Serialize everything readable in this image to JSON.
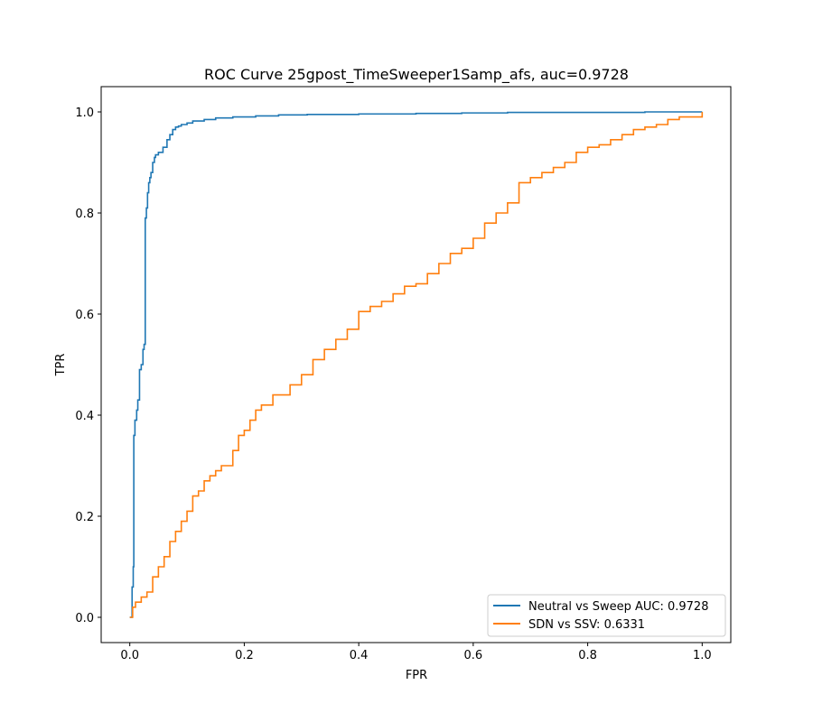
{
  "chart_data": {
    "type": "line",
    "title": "ROC Curve 25gpost_TimeSweeper1Samp_afs, auc=0.9728",
    "xlabel": "FPR",
    "ylabel": "TPR",
    "xlim": [
      -0.05,
      1.05
    ],
    "ylim": [
      -0.05,
      1.05
    ],
    "xticks": [
      0.0,
      0.2,
      0.4,
      0.6,
      0.8,
      1.0
    ],
    "xtick_labels": [
      "0.0",
      "0.2",
      "0.4",
      "0.6",
      "0.8",
      "1.0"
    ],
    "yticks": [
      0.0,
      0.2,
      0.4,
      0.6,
      0.8,
      1.0
    ],
    "ytick_labels": [
      "0.0",
      "0.2",
      "0.4",
      "0.6",
      "0.8",
      "1.0"
    ],
    "grid": false,
    "legend_position": "lower-right",
    "series": [
      {
        "name": "Neutral vs Sweep AUC: 0.9728",
        "color": "#1f77b4",
        "step": true,
        "x": [
          0.0,
          0.004,
          0.006,
          0.007,
          0.009,
          0.012,
          0.014,
          0.017,
          0.02,
          0.023,
          0.025,
          0.027,
          0.029,
          0.031,
          0.033,
          0.035,
          0.037,
          0.04,
          0.043,
          0.045,
          0.05,
          0.058,
          0.065,
          0.07,
          0.075,
          0.08,
          0.085,
          0.09,
          0.1,
          0.11,
          0.13,
          0.15,
          0.18,
          0.22,
          0.26,
          0.31,
          0.4,
          0.5,
          0.58,
          0.66,
          0.8,
          0.9,
          1.0
        ],
        "y": [
          0.0,
          0.06,
          0.1,
          0.36,
          0.39,
          0.41,
          0.43,
          0.49,
          0.5,
          0.53,
          0.54,
          0.79,
          0.81,
          0.84,
          0.86,
          0.87,
          0.88,
          0.9,
          0.91,
          0.915,
          0.92,
          0.93,
          0.945,
          0.955,
          0.965,
          0.97,
          0.972,
          0.975,
          0.978,
          0.982,
          0.985,
          0.988,
          0.99,
          0.992,
          0.994,
          0.995,
          0.996,
          0.997,
          0.998,
          0.999,
          0.999,
          1.0,
          1.0
        ]
      },
      {
        "name": "SDN vs SSV: 0.6331",
        "color": "#ff7f0e",
        "step": true,
        "x": [
          0.0,
          0.005,
          0.01,
          0.02,
          0.03,
          0.04,
          0.05,
          0.06,
          0.07,
          0.08,
          0.09,
          0.1,
          0.11,
          0.12,
          0.13,
          0.14,
          0.15,
          0.16,
          0.18,
          0.19,
          0.2,
          0.21,
          0.22,
          0.23,
          0.25,
          0.28,
          0.3,
          0.32,
          0.34,
          0.36,
          0.38,
          0.4,
          0.42,
          0.44,
          0.46,
          0.48,
          0.5,
          0.52,
          0.54,
          0.56,
          0.58,
          0.6,
          0.62,
          0.64,
          0.66,
          0.68,
          0.7,
          0.72,
          0.74,
          0.76,
          0.78,
          0.8,
          0.82,
          0.84,
          0.86,
          0.88,
          0.9,
          0.92,
          0.94,
          0.96,
          1.0
        ],
        "y": [
          0.0,
          0.02,
          0.03,
          0.04,
          0.05,
          0.08,
          0.1,
          0.12,
          0.15,
          0.17,
          0.19,
          0.21,
          0.24,
          0.25,
          0.27,
          0.28,
          0.29,
          0.3,
          0.33,
          0.36,
          0.37,
          0.39,
          0.41,
          0.42,
          0.44,
          0.46,
          0.48,
          0.51,
          0.53,
          0.55,
          0.57,
          0.605,
          0.615,
          0.625,
          0.64,
          0.655,
          0.66,
          0.68,
          0.7,
          0.72,
          0.73,
          0.75,
          0.78,
          0.8,
          0.82,
          0.86,
          0.87,
          0.88,
          0.89,
          0.9,
          0.92,
          0.93,
          0.935,
          0.945,
          0.955,
          0.965,
          0.97,
          0.975,
          0.985,
          0.99,
          1.0
        ]
      }
    ]
  }
}
